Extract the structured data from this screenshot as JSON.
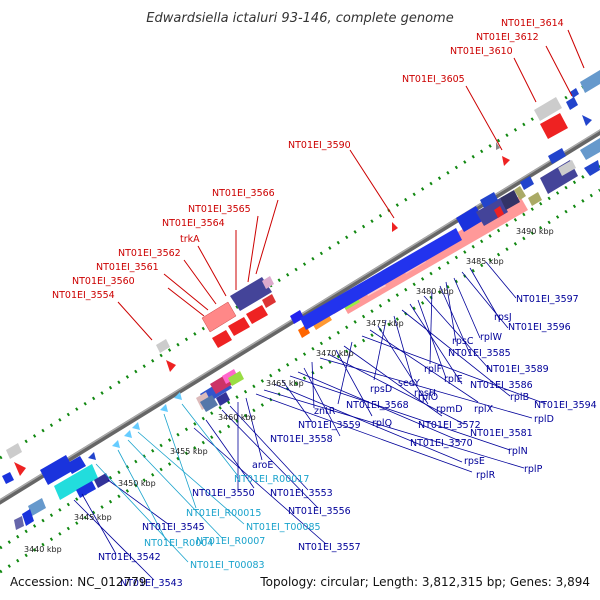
{
  "title": "Edwardsiella ictaluri 93-146, complete genome",
  "footer": {
    "accession": "Accession: NC_012779",
    "summary": "Topology: circular; Length: 3,812,315 bp; Genes: 3,894"
  },
  "colors": {
    "top_strand_labels": "#cc0000",
    "bottom_strand_labels": "#000099",
    "rna_labels": "#1aa3cc",
    "axis": "#888888",
    "dots": "#118811"
  },
  "ticks": [
    "3440 kbp",
    "3445 kbp",
    "3450 kbp",
    "3455 kbp",
    "3460 kbp",
    "3465 kbp",
    "3470 kbp",
    "3475 kbp",
    "3480 kbp",
    "3485 kbp",
    "3490 kbp"
  ],
  "top_labels": [
    "NT01EI_3614",
    "NT01EI_3612",
    "NT01EI_3610",
    "NT01EI_3605",
    "NT01EI_3590",
    "NT01EI_3566",
    "NT01EI_3565",
    "NT01EI_3564",
    "trkA",
    "NT01EI_3562",
    "NT01EI_3561",
    "NT01EI_3560",
    "NT01EI_3554"
  ],
  "bottom_labels": [
    "NT01EI_3597",
    "rpsJ",
    "NT01EI_3596",
    "rplW",
    "rpsC",
    "NT01EI_3585",
    "rplF",
    "NT01EI_3589",
    "rplE",
    "NT01EI_3586",
    "secY",
    "rpsH",
    "rplB",
    "rpsD",
    "rplO",
    "NT01EI_3594",
    "NT01EI_3568",
    "rpmD",
    "rplX",
    "rplD",
    "rplQ",
    "NT01EI_3572",
    "NT01EI_3581",
    "zntR",
    "NT01EI_3559",
    "NT01EI_3570",
    "rplN",
    "NT01EI_3558",
    "rpsE",
    "rplP",
    "rplR",
    "aroE",
    "NT01EI_3550",
    "NT01EI_3553",
    "NT01EI_3556",
    "NT01EI_3545",
    "NT01EI_3557",
    "NT01EI_3542",
    "NT01EI_3543"
  ],
  "rna_labels": [
    "NT01EI_R00017",
    "NT01EI_R00015",
    "NT01EI_T00085",
    "NT01EI_R0007",
    "NT01EI_R0004",
    "NT01EI_T00083"
  ]
}
